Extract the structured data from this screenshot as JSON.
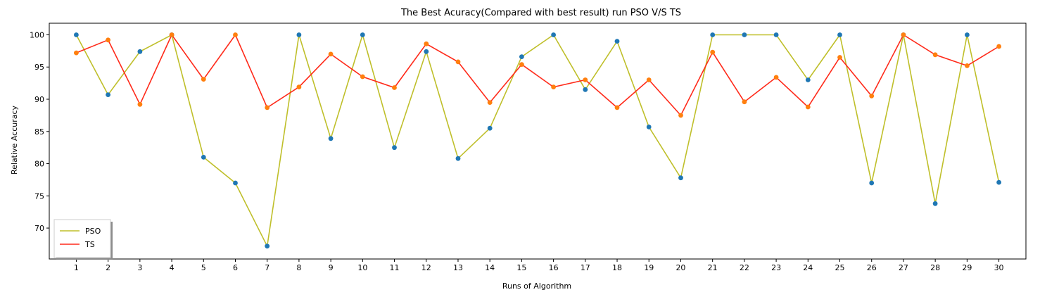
{
  "chart_data": {
    "type": "line",
    "title": "The Best Acuracy(Compared with best result) run PSO V/S TS",
    "xlabel": "Runs of Algorithm",
    "ylabel": "Relative Accuracy",
    "x": [
      1,
      2,
      3,
      4,
      5,
      6,
      7,
      8,
      9,
      10,
      11,
      12,
      13,
      14,
      15,
      16,
      17,
      18,
      19,
      20,
      21,
      22,
      23,
      24,
      25,
      26,
      27,
      28,
      29,
      30
    ],
    "xlim": [
      0.15,
      30.85
    ],
    "ylim": [
      65.2,
      101.8
    ],
    "yticks": [
      70,
      75,
      80,
      85,
      90,
      95,
      100
    ],
    "grid": false,
    "legend_position": "lower-left",
    "series": [
      {
        "name": "PSO",
        "line_color": "#bfbf2a",
        "marker_color": "#1f77b4",
        "values": [
          100,
          90.7,
          97.4,
          100,
          81.0,
          77.0,
          67.2,
          100,
          83.9,
          100,
          82.5,
          97.4,
          80.8,
          85.5,
          96.6,
          100,
          91.5,
          99.0,
          85.7,
          77.8,
          100,
          100,
          100,
          93.0,
          100,
          77.0,
          100,
          73.8,
          100,
          77.1
        ]
      },
      {
        "name": "TS",
        "line_color": "#ff2a1a",
        "marker_color": "#ff7f0e",
        "values": [
          97.2,
          99.2,
          89.2,
          100,
          93.1,
          100,
          88.7,
          91.9,
          97.0,
          93.5,
          91.8,
          98.6,
          95.8,
          89.5,
          95.4,
          91.9,
          93.0,
          88.7,
          93.0,
          87.5,
          97.3,
          89.6,
          93.4,
          88.8,
          96.5,
          90.5,
          100,
          96.9,
          95.2,
          98.2
        ]
      }
    ]
  }
}
